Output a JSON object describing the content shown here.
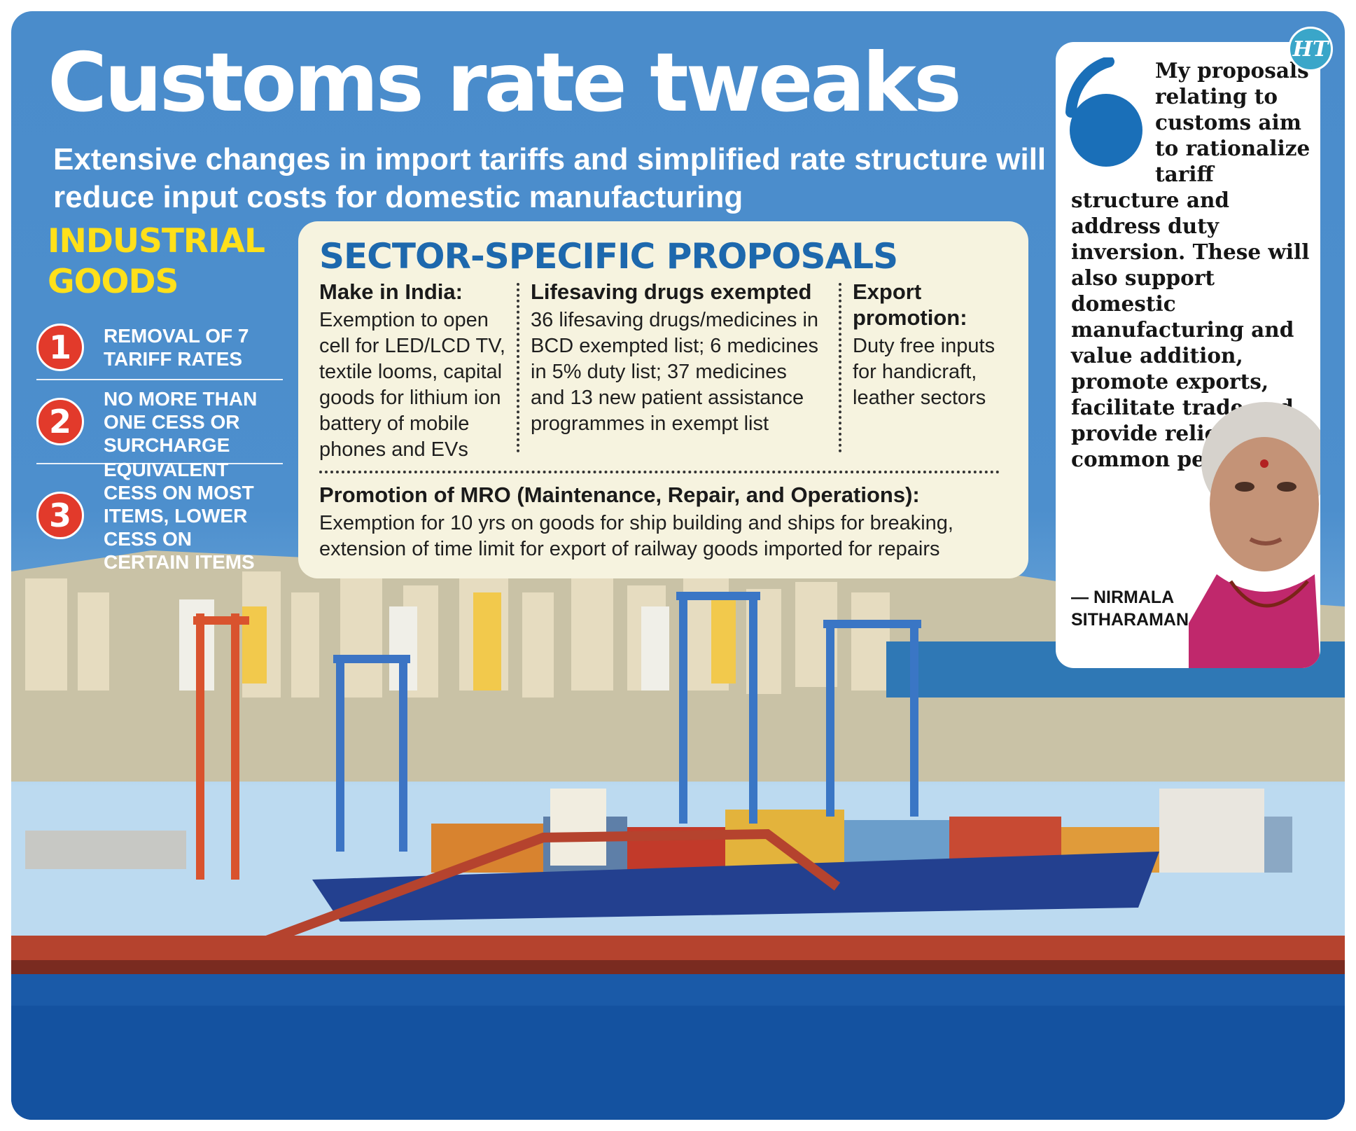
{
  "title": "Customs rate tweaks",
  "subtitle": "Extensive changes in import tariffs and simplified rate structure will reduce input costs for domestic manufacturing",
  "industrial_goods": {
    "heading_line1": "INDUSTRIAL",
    "heading_line2": "GOODS",
    "items": [
      {
        "number": "1",
        "text": "Removal of 7 tariff rates"
      },
      {
        "number": "2",
        "text": "No more than one cess or surcharge"
      },
      {
        "number": "3",
        "text": "Equivalent cess on most items, lower cess on certain items"
      }
    ]
  },
  "sector_proposals": {
    "heading": "SECTOR-SPECIFIC PROPOSALS",
    "make_in_india": {
      "heading": "Make in India:",
      "body": "Exemption to open cell for LED/LCD TV, textile looms, capital goods for lithium ion battery of mobile phones and EVs"
    },
    "lifesaving_drugs": {
      "heading": "Lifesaving drugs exempted",
      "body": "36 lifesaving drugs/medicines in BCD exempted list; 6 medicines in 5% duty list; 37 medicines and 13 new patient assistance programmes in exempt list"
    },
    "export_promotion": {
      "heading": "Export promotion:",
      "body": "Duty free inputs for handicraft, leather sectors"
    },
    "mro": {
      "heading": "Promotion of MRO (Maintenance, Repair, and Operations):",
      "body": "Exemption for 10 yrs on goods for ship building and ships for breaking, extension of time limit for export of railway goods imported for repairs"
    }
  },
  "quote": {
    "text": "My proposals relating to customs aim to rationalize tariff structure and address duty inversion. These will also support domestic manufacturing and value addition, promote exports, facilitate trade and provide relief to common people",
    "author": "— NIRMALA SITHARAMAN"
  },
  "logo": {
    "text": "HT"
  },
  "colors": {
    "sky_blue": "#4a8ccb",
    "heading_yellow": "#ffe01a",
    "number_red": "#e23a2b",
    "sector_heading_blue": "#1d68ad",
    "box_cream": "#f6f3df",
    "quote_mark_blue": "#1a6fb8"
  }
}
